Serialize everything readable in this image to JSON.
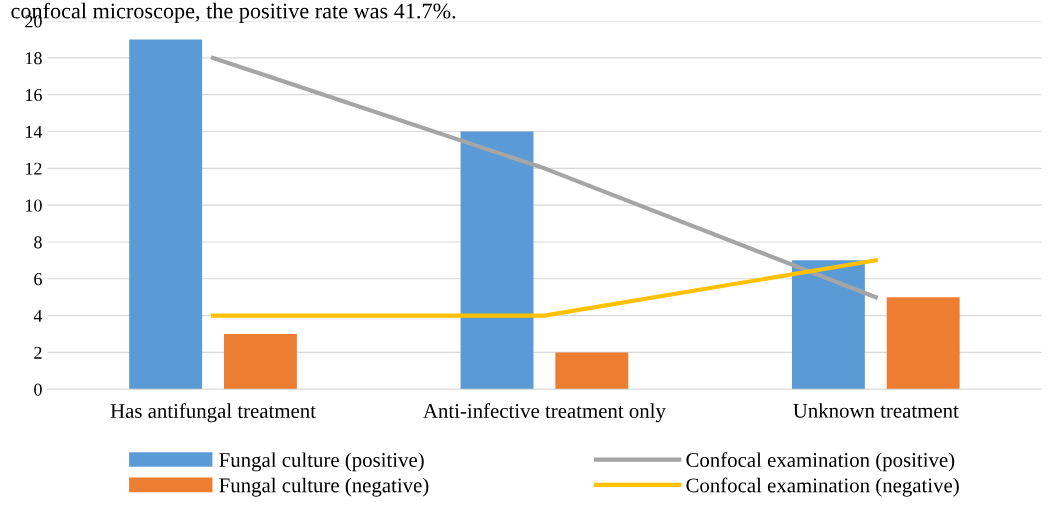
{
  "chart_data": {
    "type": "bar",
    "annotations": [
      "confocal microscope, the positive rate was 41.7%."
    ],
    "categories": [
      "Has antifungal treatment",
      "Anti-infective treatment only",
      "Unknown treatment"
    ],
    "series": [
      {
        "name": "Fungal culture (positive)",
        "color": "#5b9bd5",
        "values": [
          19,
          14,
          7
        ]
      },
      {
        "name": "Fungal culture (negative)",
        "color": "#ed7d31",
        "values": [
          3,
          2,
          5
        ]
      },
      {
        "name": "Confocal examination (positive)",
        "color": "#a5a5a5",
        "type": "line",
        "values": [
          18,
          12,
          5
        ]
      },
      {
        "name": "Confocal examination (negative)",
        "color": "#ffc000",
        "type": "line",
        "values": [
          4,
          4,
          7
        ]
      }
    ],
    "ylim": [
      0,
      20
    ],
    "yticks": [
      0,
      2,
      4,
      6,
      8,
      10,
      12,
      14,
      16,
      18,
      20
    ],
    "grid": "y",
    "legend": "bottom",
    "marker": "none"
  }
}
